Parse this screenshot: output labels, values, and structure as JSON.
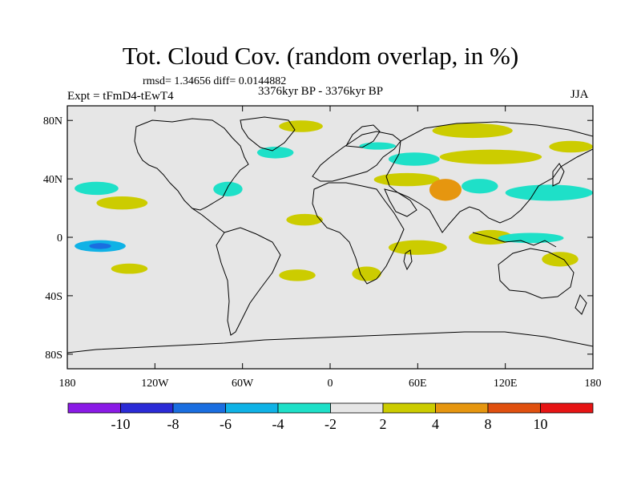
{
  "figure": {
    "title": "Tot. Cloud Cov. (random overlap, in %)",
    "stats": "rmsd= 1.34656 diff= 0.0144882",
    "subtitle": "3376kyr BP - 3376kyr BP",
    "experiment": "Expt = tFmD4-tEwT4",
    "season": "JJA"
  },
  "chart_data": {
    "type": "heatmap",
    "title": "Tot. Cloud Cov. (random overlap, in %)",
    "xlabel": "",
    "ylabel": "",
    "xlim": [
      -180,
      180
    ],
    "ylim": [
      -90,
      90
    ],
    "x_ticks": [
      {
        "value": -180,
        "label": "180"
      },
      {
        "value": -120,
        "label": "120W"
      },
      {
        "value": -60,
        "label": "60W"
      },
      {
        "value": 0,
        "label": "0"
      },
      {
        "value": 60,
        "label": "60E"
      },
      {
        "value": 120,
        "label": "120E"
      },
      {
        "value": 180,
        "label": "180"
      }
    ],
    "y_ticks": [
      {
        "value": 80,
        "label": "80N"
      },
      {
        "value": 40,
        "label": "40N"
      },
      {
        "value": 0,
        "label": "0"
      },
      {
        "value": -40,
        "label": "40S"
      },
      {
        "value": -80,
        "label": "80S"
      }
    ],
    "colorbar": {
      "levels": [
        -10,
        -8,
        -6,
        -4,
        -2,
        2,
        4,
        8,
        10
      ],
      "labels": [
        "-10",
        "-8",
        "-6",
        "-4",
        "-2",
        "2",
        "4",
        "8",
        "10"
      ],
      "colors": [
        "#8a1ae6",
        "#2b2bd6",
        "#1a6ee0",
        "#0fb2e6",
        "#1ee0c8",
        "#e6e6e6",
        "#cccc00",
        "#e6960f",
        "#e0500f",
        "#e61414"
      ]
    },
    "background_color": "#e6e6e6",
    "anomalies": [
      {
        "name": "arctic-siberia-positive",
        "lon": [
          70,
          125
        ],
        "lat": [
          68,
          78
        ],
        "value": 3
      },
      {
        "name": "greenland-sea-positive",
        "lon": [
          -35,
          -5
        ],
        "lat": [
          72,
          80
        ],
        "value": 3
      },
      {
        "name": "north-atlantic-negative",
        "lon": [
          -50,
          -25
        ],
        "lat": [
          54,
          62
        ],
        "value": -3
      },
      {
        "name": "baltic-negative",
        "lon": [
          20,
          45
        ],
        "lat": [
          60,
          65
        ],
        "value": -3
      },
      {
        "name": "central-asia-negative",
        "lon": [
          40,
          75
        ],
        "lat": [
          49,
          58
        ],
        "value": -3
      },
      {
        "name": "east-asia-positive",
        "lon": [
          75,
          145
        ],
        "lat": [
          50,
          60
        ],
        "value": 3
      },
      {
        "name": "pacific-nw-positive",
        "lon": [
          150,
          180
        ],
        "lat": [
          58,
          66
        ],
        "value": 3
      },
      {
        "name": "north-pacific-negative",
        "lon": [
          120,
          180
        ],
        "lat": [
          25,
          36
        ],
        "value": -3
      },
      {
        "name": "iran-positive",
        "lon": [
          30,
          75
        ],
        "lat": [
          35,
          44
        ],
        "value": 3
      },
      {
        "name": "tibet-positive",
        "lon": [
          68,
          90
        ],
        "lat": [
          25,
          40
        ],
        "value": 5
      },
      {
        "name": "tibet-core",
        "lon": [
          76,
          84
        ],
        "lat": [
          31,
          37
        ],
        "value": 6
      },
      {
        "name": "china-negative",
        "lon": [
          90,
          115
        ],
        "lat": [
          30,
          40
        ],
        "value": -3
      },
      {
        "name": "ne-pacific-negative",
        "lon": [
          -175,
          -145
        ],
        "lat": [
          29,
          38
        ],
        "value": -3
      },
      {
        "name": "east-pacific-positive",
        "lon": [
          -160,
          -125
        ],
        "lat": [
          19,
          28
        ],
        "value": 3
      },
      {
        "name": "gulf-negative",
        "lon": [
          -80,
          -60
        ],
        "lat": [
          28,
          38
        ],
        "value": -4
      },
      {
        "name": "central-pacific-negative",
        "lon": [
          -175,
          -140
        ],
        "lat": [
          -10,
          -2
        ],
        "value": -6
      },
      {
        "name": "central-pacific-core",
        "lon": [
          -165,
          -150
        ],
        "lat": [
          -8,
          -4
        ],
        "value": -8
      },
      {
        "name": "south-pacific-positive",
        "lon": [
          -150,
          -125
        ],
        "lat": [
          -25,
          -18
        ],
        "value": 3
      },
      {
        "name": "indian-ocean-positive",
        "lon": [
          40,
          80
        ],
        "lat": [
          -12,
          -2
        ],
        "value": 3
      },
      {
        "name": "west-pacific-positive",
        "lon": [
          95,
          125
        ],
        "lat": [
          -5,
          5
        ],
        "value": 3
      },
      {
        "name": "maritime-negative",
        "lon": [
          115,
          160
        ],
        "lat": [
          -4,
          3
        ],
        "value": -3
      },
      {
        "name": "coral-sea-positive",
        "lon": [
          145,
          170
        ],
        "lat": [
          -20,
          -10
        ],
        "value": 3
      },
      {
        "name": "south-africa-positive",
        "lon": [
          15,
          35
        ],
        "lat": [
          -30,
          -20
        ],
        "value": 3
      },
      {
        "name": "south-atlantic-positive",
        "lon": [
          -35,
          -10
        ],
        "lat": [
          -30,
          -22
        ],
        "value": 3
      },
      {
        "name": "tropical-atlantic-positive",
        "lon": [
          -30,
          -5
        ],
        "lat": [
          8,
          16
        ],
        "value": 3
      }
    ]
  }
}
